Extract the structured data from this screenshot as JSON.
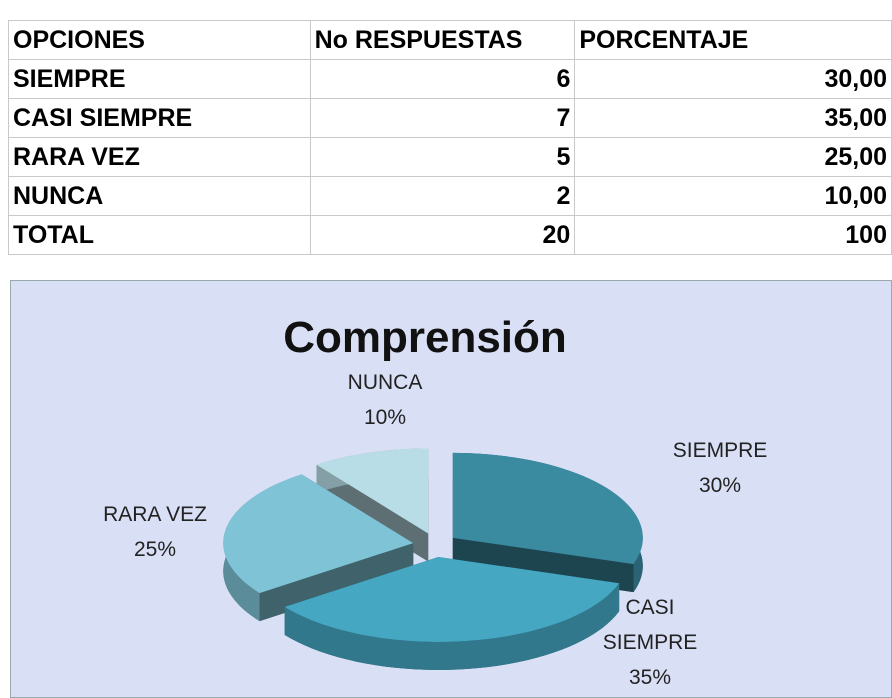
{
  "table": {
    "header": [
      "OPCIONES",
      "No RESPUESTAS",
      "PORCENTAJE"
    ],
    "rows": [
      [
        "SIEMPRE",
        "6",
        "30,00"
      ],
      [
        "CASI SIEMPRE",
        "7",
        "35,00"
      ],
      [
        "RARA VEZ",
        "5",
        "25,00"
      ],
      [
        "NUNCA",
        "2",
        "10,00"
      ],
      [
        "TOTAL",
        "20",
        "100"
      ]
    ]
  },
  "chart_data": {
    "type": "pie",
    "title": "Comprensión",
    "categories": [
      "SIEMPRE",
      "CASI SIEMPRE",
      "RARA VEZ",
      "NUNCA"
    ],
    "values": [
      30,
      35,
      25,
      10
    ],
    "value_labels": [
      "30%",
      "35%",
      "25%",
      "10%"
    ],
    "colors": [
      "#3a8aa0",
      "#45a7c2",
      "#7ec3d6",
      "#b9dde6"
    ]
  }
}
